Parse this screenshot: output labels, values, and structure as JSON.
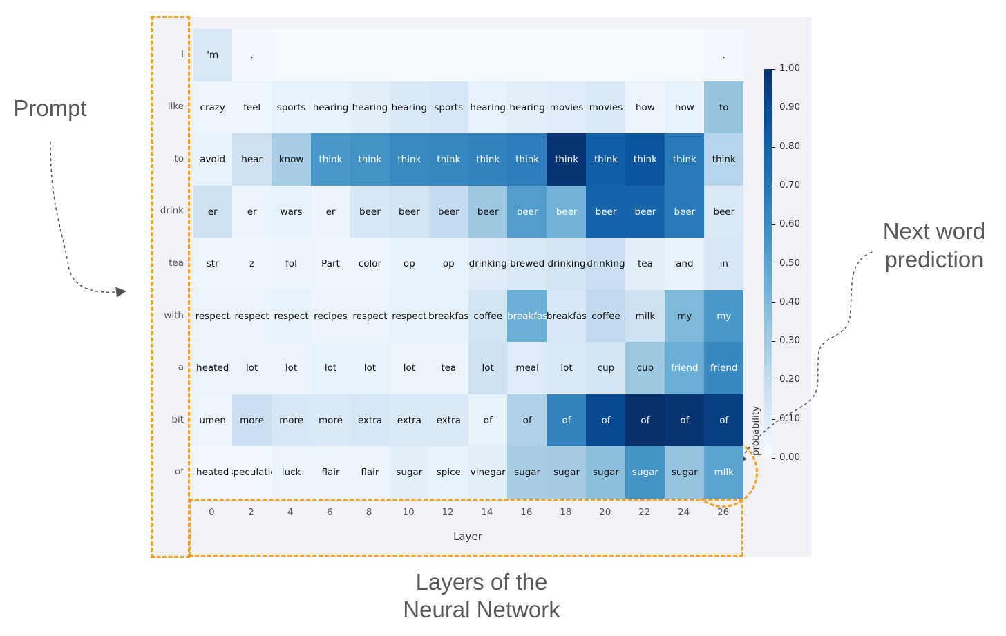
{
  "chart_data": {
    "type": "heatmap",
    "xlabel": "Layer",
    "colorbar_label": "probability",
    "x": [
      0,
      2,
      4,
      6,
      8,
      10,
      12,
      14,
      16,
      18,
      20,
      22,
      24,
      26
    ],
    "rows": [
      "I",
      "like",
      "to",
      "drink",
      "tea",
      "with",
      "a",
      "bit",
      "of"
    ],
    "colorbar_ticks": [
      "0.00",
      "0.10",
      "0.20",
      "0.30",
      "0.40",
      "0.50",
      "0.60",
      "0.70",
      "0.80",
      "0.90",
      "1.00"
    ],
    "colorbar_range": [
      0,
      1
    ],
    "tokens": [
      [
        "'m",
        ".",
        "",
        "",
        "",
        "",
        "",
        "",
        "",
        "",
        "",
        "",
        "",
        "."
      ],
      [
        "crazy",
        "feel",
        "sports",
        "hearing",
        "hearing",
        "hearing",
        "sports",
        "hearing",
        "hearing",
        "movies",
        "movies",
        "how",
        "how",
        "to"
      ],
      [
        "avoid",
        "hear",
        "know",
        "think",
        "think",
        "think",
        "think",
        "think",
        "think",
        "think",
        "think",
        "think",
        "think",
        "think"
      ],
      [
        "er",
        "er",
        "wars",
        "er",
        "beer",
        "beer",
        "beer",
        "beer",
        "beer",
        "beer",
        "beer",
        "beer",
        "beer",
        "beer"
      ],
      [
        "str",
        "z",
        "fol",
        "Part",
        "color",
        "op",
        "op",
        "drinking",
        "brewed",
        "drinking",
        "drinking",
        "tea",
        "and",
        "in"
      ],
      [
        "respect",
        "respect",
        "respect",
        "recipes",
        "respect",
        "respect",
        "breakfas",
        "coffee",
        "breakfas",
        "breakfas",
        "coffee",
        "milk",
        "my",
        "my"
      ],
      [
        "heated",
        "lot",
        "lot",
        "lot",
        "lot",
        "lot",
        "tea",
        "lot",
        "meal",
        "lot",
        "cup",
        "cup",
        "friend",
        "friend"
      ],
      [
        "umen",
        "more",
        "more",
        "more",
        "extra",
        "extra",
        "extra",
        "of",
        "of",
        "of",
        "of",
        "of",
        "of",
        "of"
      ],
      [
        "heated",
        "speculatic",
        "luck",
        "flair",
        "flair",
        "sugar",
        "spice",
        "vinegar",
        "sugar",
        "sugar",
        "sugar",
        "sugar",
        "sugar",
        "milk"
      ]
    ],
    "probabilities": [
      [
        0.15,
        0.02,
        0.01,
        0.01,
        0.01,
        0.01,
        0.01,
        0.01,
        0.01,
        0.01,
        0.01,
        0.01,
        0.01,
        0.02
      ],
      [
        0.05,
        0.05,
        0.08,
        0.08,
        0.1,
        0.14,
        0.16,
        0.08,
        0.1,
        0.12,
        0.14,
        0.06,
        0.08,
        0.4
      ],
      [
        0.08,
        0.2,
        0.35,
        0.6,
        0.62,
        0.65,
        0.66,
        0.68,
        0.7,
        0.98,
        0.82,
        0.86,
        0.72,
        0.3
      ],
      [
        0.2,
        0.06,
        0.08,
        0.06,
        0.16,
        0.18,
        0.25,
        0.38,
        0.58,
        0.48,
        0.8,
        0.8,
        0.72,
        0.14
      ],
      [
        0.05,
        0.05,
        0.06,
        0.05,
        0.05,
        0.08,
        0.08,
        0.12,
        0.15,
        0.18,
        0.22,
        0.1,
        0.08,
        0.16
      ],
      [
        0.06,
        0.06,
        0.08,
        0.06,
        0.06,
        0.08,
        0.08,
        0.18,
        0.5,
        0.16,
        0.26,
        0.2,
        0.45,
        0.6
      ],
      [
        0.06,
        0.06,
        0.06,
        0.08,
        0.08,
        0.06,
        0.06,
        0.2,
        0.12,
        0.14,
        0.18,
        0.38,
        0.5,
        0.66
      ],
      [
        0.05,
        0.22,
        0.16,
        0.14,
        0.16,
        0.14,
        0.14,
        0.08,
        0.32,
        0.68,
        0.9,
        1.0,
        0.98,
        0.94
      ],
      [
        0.03,
        0.03,
        0.06,
        0.06,
        0.06,
        0.1,
        0.08,
        0.1,
        0.35,
        0.36,
        0.42,
        0.62,
        0.4,
        0.55
      ]
    ]
  },
  "annotations": {
    "prompt": "Prompt",
    "next_word_1": "Next word",
    "next_word_2": "prediction",
    "layers_1": "Layers of the",
    "layers_2": "Neural Network"
  }
}
